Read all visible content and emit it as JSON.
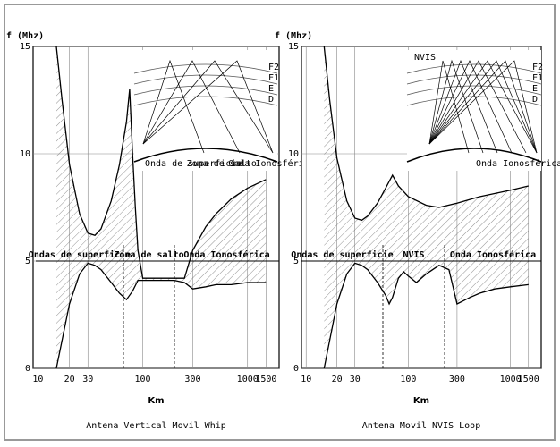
{
  "chart_data": [
    {
      "type": "area",
      "title": "Antena Vertical Movil Whip",
      "y_label": "f (Mhz)",
      "x_label": "Km",
      "log_x": true,
      "grid": true,
      "xlim": [
        9,
        2000
      ],
      "ylim": [
        0,
        15
      ],
      "xticks": [
        10,
        20,
        30,
        100,
        300,
        1000,
        1500
      ],
      "yticks": [
        0,
        5,
        10,
        15
      ],
      "annotations": [
        "Ondas de superficie",
        "Zona de salto",
        "Onda Ionosférica"
      ],
      "inset_labels": [
        "F2",
        "F1",
        "E",
        "D",
        "Onda de superficie",
        "Zona de salto",
        "Onda Ionosférica"
      ],
      "series": [
        {
          "color": "#000000",
          "x": [
            15,
            17,
            20,
            25,
            30,
            35,
            40,
            50,
            60,
            70,
            75,
            80,
            85,
            90,
            100,
            150,
            200,
            250,
            300,
            400,
            500,
            700,
            1000,
            1500
          ],
          "values": [
            15,
            12.5,
            9.5,
            7.2,
            6.3,
            6.2,
            6.5,
            7.8,
            9.5,
            11.5,
            13,
            10,
            7.5,
            5.5,
            4.2,
            4.2,
            4.2,
            4.2,
            5.5,
            6.6,
            7.2,
            7.9,
            8.4,
            8.8
          ]
        },
        {
          "color": "#000000",
          "x": [
            15,
            20,
            25,
            30,
            35,
            40,
            50,
            60,
            70,
            80,
            90,
            100,
            150,
            200,
            250,
            300,
            400,
            500,
            700,
            1000,
            1500
          ],
          "values": [
            0,
            3,
            4.4,
            4.9,
            4.8,
            4.6,
            4,
            3.5,
            3.2,
            3.6,
            4.1,
            4.1,
            4.1,
            4.1,
            4.0,
            3.7,
            3.8,
            3.9,
            3.9,
            4.0,
            4.0
          ]
        }
      ]
    },
    {
      "type": "area",
      "title": "Antena Movil NVIS Loop",
      "y_label": "f (Mhz)",
      "x_label": "Km",
      "log_x": true,
      "grid": true,
      "xlim": [
        9,
        2000
      ],
      "ylim": [
        0,
        15
      ],
      "xticks": [
        10,
        20,
        30,
        100,
        300,
        1000,
        1500
      ],
      "yticks": [
        0,
        5,
        10,
        15
      ],
      "annotations": [
        "Ondas de superficie",
        "NVIS",
        "Onda Ionosférica"
      ],
      "inset_labels": [
        "F2",
        "F1",
        "E",
        "D",
        "NVIS",
        "Onda Ionosférica"
      ],
      "series": [
        {
          "color": "#000000",
          "x": [
            15,
            17,
            20,
            25,
            30,
            35,
            40,
            50,
            60,
            70,
            80,
            100,
            150,
            200,
            300,
            500,
            1000,
            1500
          ],
          "values": [
            15,
            12.5,
            9.8,
            7.8,
            7.0,
            6.9,
            7.1,
            7.7,
            8.4,
            9.0,
            8.5,
            8.0,
            7.6,
            7.5,
            7.7,
            8.0,
            8.3,
            8.5
          ]
        },
        {
          "color": "#000000",
          "x": [
            15,
            20,
            25,
            30,
            35,
            40,
            50,
            60,
            65,
            70,
            80,
            90,
            100,
            120,
            150,
            200,
            250,
            300,
            400,
            500,
            700,
            1000,
            1500
          ],
          "values": [
            0,
            3,
            4.4,
            4.9,
            4.8,
            4.6,
            4,
            3.4,
            3.0,
            3.3,
            4.2,
            4.5,
            4.3,
            4.0,
            4.4,
            4.8,
            4.6,
            3.0,
            3.3,
            3.5,
            3.7,
            3.8,
            3.9
          ]
        }
      ]
    }
  ]
}
